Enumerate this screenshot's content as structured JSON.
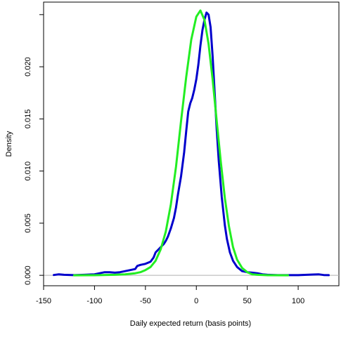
{
  "chart_data": {
    "type": "line",
    "title": "",
    "xlabel": "Daily expected return (basis points)",
    "ylabel": "Density",
    "xlim": [
      -150,
      140
    ],
    "ylim": [
      -0.001,
      0.0262
    ],
    "x_ticks": [
      -150,
      -100,
      -50,
      0,
      50,
      100
    ],
    "x_tick_labels": [
      "-150",
      "-100",
      "-50",
      "0",
      "50",
      "100"
    ],
    "y_ticks": [
      0.0,
      0.005,
      0.01,
      0.015,
      0.02
    ],
    "y_tick_labels": [
      "0.000",
      "0.005",
      "0.010",
      "0.015",
      "0.020"
    ],
    "y_minor_ticks": [
      0.025
    ],
    "grid": false,
    "baseline_y": 0,
    "baseline_color": "#b0b0b0",
    "series": [
      {
        "color": "#0000cc",
        "points": [
          [
            -140,
            3e-05
          ],
          [
            -135,
            0.0001
          ],
          [
            -130,
            5e-05
          ],
          [
            -120,
            2e-05
          ],
          [
            -110,
            5e-05
          ],
          [
            -100,
            0.0001
          ],
          [
            -95,
            0.0002
          ],
          [
            -90,
            0.0003
          ],
          [
            -85,
            0.0003
          ],
          [
            -80,
            0.00025
          ],
          [
            -75,
            0.0003
          ],
          [
            -70,
            0.0004
          ],
          [
            -65,
            0.0005
          ],
          [
            -60,
            0.0006
          ],
          [
            -58,
            0.0009
          ],
          [
            -55,
            0.001
          ],
          [
            -50,
            0.0011
          ],
          [
            -45,
            0.0013
          ],
          [
            -42,
            0.0017
          ],
          [
            -40,
            0.0022
          ],
          [
            -37,
            0.0025
          ],
          [
            -35,
            0.0027
          ],
          [
            -32,
            0.003
          ],
          [
            -30,
            0.0033
          ],
          [
            -28,
            0.0037
          ],
          [
            -25,
            0.0045
          ],
          [
            -22,
            0.0055
          ],
          [
            -20,
            0.0065
          ],
          [
            -18,
            0.0078
          ],
          [
            -15,
            0.0095
          ],
          [
            -12,
            0.0118
          ],
          [
            -10,
            0.0138
          ],
          [
            -8,
            0.0157
          ],
          [
            -6,
            0.0165
          ],
          [
            -4,
            0.017
          ],
          [
            -2,
            0.0178
          ],
          [
            0,
            0.0188
          ],
          [
            2,
            0.0202
          ],
          [
            4,
            0.022
          ],
          [
            6,
            0.0235
          ],
          [
            8,
            0.0245
          ],
          [
            10,
            0.0252
          ],
          [
            12,
            0.025
          ],
          [
            14,
            0.0238
          ],
          [
            16,
            0.021
          ],
          [
            18,
            0.0175
          ],
          [
            20,
            0.014
          ],
          [
            22,
            0.011
          ],
          [
            25,
            0.0075
          ],
          [
            28,
            0.0048
          ],
          [
            30,
            0.0035
          ],
          [
            33,
            0.0022
          ],
          [
            36,
            0.0014
          ],
          [
            40,
            0.0008
          ],
          [
            45,
            0.0004
          ],
          [
            50,
            0.0003
          ],
          [
            55,
            0.00025
          ],
          [
            60,
            0.0002
          ],
          [
            65,
            0.0001
          ],
          [
            70,
            5e-05
          ],
          [
            80,
            2e-05
          ],
          [
            100,
            2e-05
          ],
          [
            115,
            8e-05
          ],
          [
            120,
            0.0001
          ],
          [
            125,
            3e-05
          ],
          [
            130,
            2e-05
          ]
        ]
      },
      {
        "color": "#22ee22",
        "points": [
          [
            -120,
            0.0
          ],
          [
            -100,
            1e-05
          ],
          [
            -80,
            5e-05
          ],
          [
            -70,
            0.0001
          ],
          [
            -60,
            0.0002
          ],
          [
            -55,
            0.0003
          ],
          [
            -50,
            0.0005
          ],
          [
            -45,
            0.0008
          ],
          [
            -40,
            0.0014
          ],
          [
            -35,
            0.0025
          ],
          [
            -30,
            0.0042
          ],
          [
            -25,
            0.0068
          ],
          [
            -20,
            0.0104
          ],
          [
            -15,
            0.0148
          ],
          [
            -10,
            0.019
          ],
          [
            -5,
            0.0226
          ],
          [
            0,
            0.0248
          ],
          [
            4,
            0.0254
          ],
          [
            8,
            0.0245
          ],
          [
            12,
            0.0222
          ],
          [
            16,
            0.0188
          ],
          [
            20,
            0.0148
          ],
          [
            24,
            0.0109
          ],
          [
            28,
            0.0074
          ],
          [
            32,
            0.0047
          ],
          [
            36,
            0.0027
          ],
          [
            40,
            0.0015
          ],
          [
            45,
            0.0007
          ],
          [
            50,
            0.0003
          ],
          [
            55,
            0.0001
          ],
          [
            60,
            5e-05
          ],
          [
            70,
            1e-05
          ],
          [
            90,
            0.0
          ]
        ]
      }
    ]
  }
}
